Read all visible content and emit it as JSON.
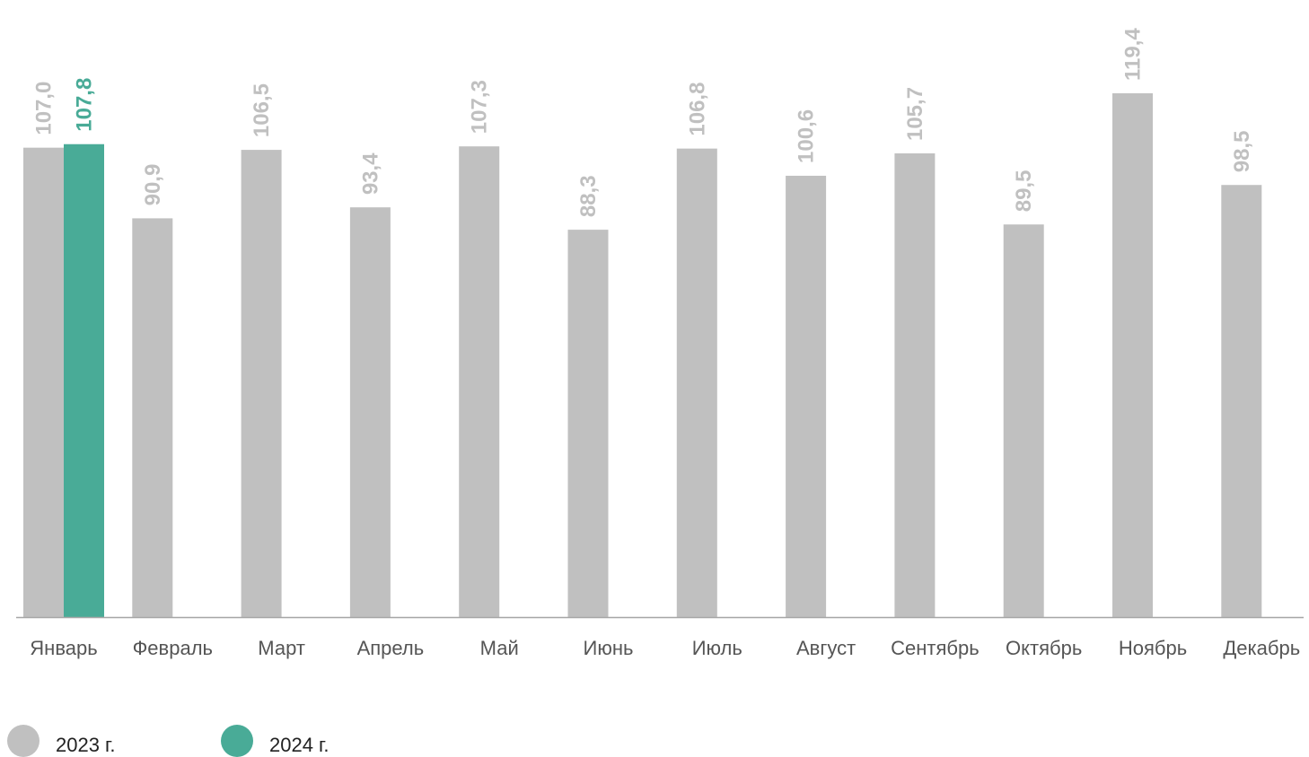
{
  "chart_data": {
    "type": "bar",
    "categories": [
      "Январь",
      "Февраль",
      "Март",
      "Апрель",
      "Май",
      "Июнь",
      "Июль",
      "Август",
      "Сентябрь",
      "Октябрь",
      "Ноябрь",
      "Декабрь"
    ],
    "series": [
      {
        "name": "2023 г.",
        "color": "#c0c0c0",
        "values": [
          107.0,
          90.9,
          106.5,
          93.4,
          107.3,
          88.3,
          106.8,
          100.6,
          105.7,
          89.5,
          119.4,
          98.5
        ],
        "labels": [
          "107,0",
          "90,9",
          "106,5",
          "93,4",
          "107,3",
          "88,3",
          "106,8",
          "100,6",
          "105,7",
          "89,5",
          "119,4",
          "98,5"
        ]
      },
      {
        "name": "2024 г.",
        "color": "#49ab97",
        "values": [
          107.8,
          null,
          null,
          null,
          null,
          null,
          null,
          null,
          null,
          null,
          null,
          null
        ],
        "labels": [
          "107,8",
          "",
          "",
          "",
          "",
          "",
          "",
          "",
          "",
          "",
          "",
          ""
        ]
      }
    ],
    "ylim": [
      0,
      120
    ],
    "grid": false,
    "legend": "bottom-left",
    "title": "",
    "xlabel": "",
    "ylabel": ""
  },
  "legend": {
    "items": [
      {
        "label": "2023 г.",
        "color": "#c0c0c0"
      },
      {
        "label": "2024 г.",
        "color": "#49ab97"
      }
    ]
  }
}
